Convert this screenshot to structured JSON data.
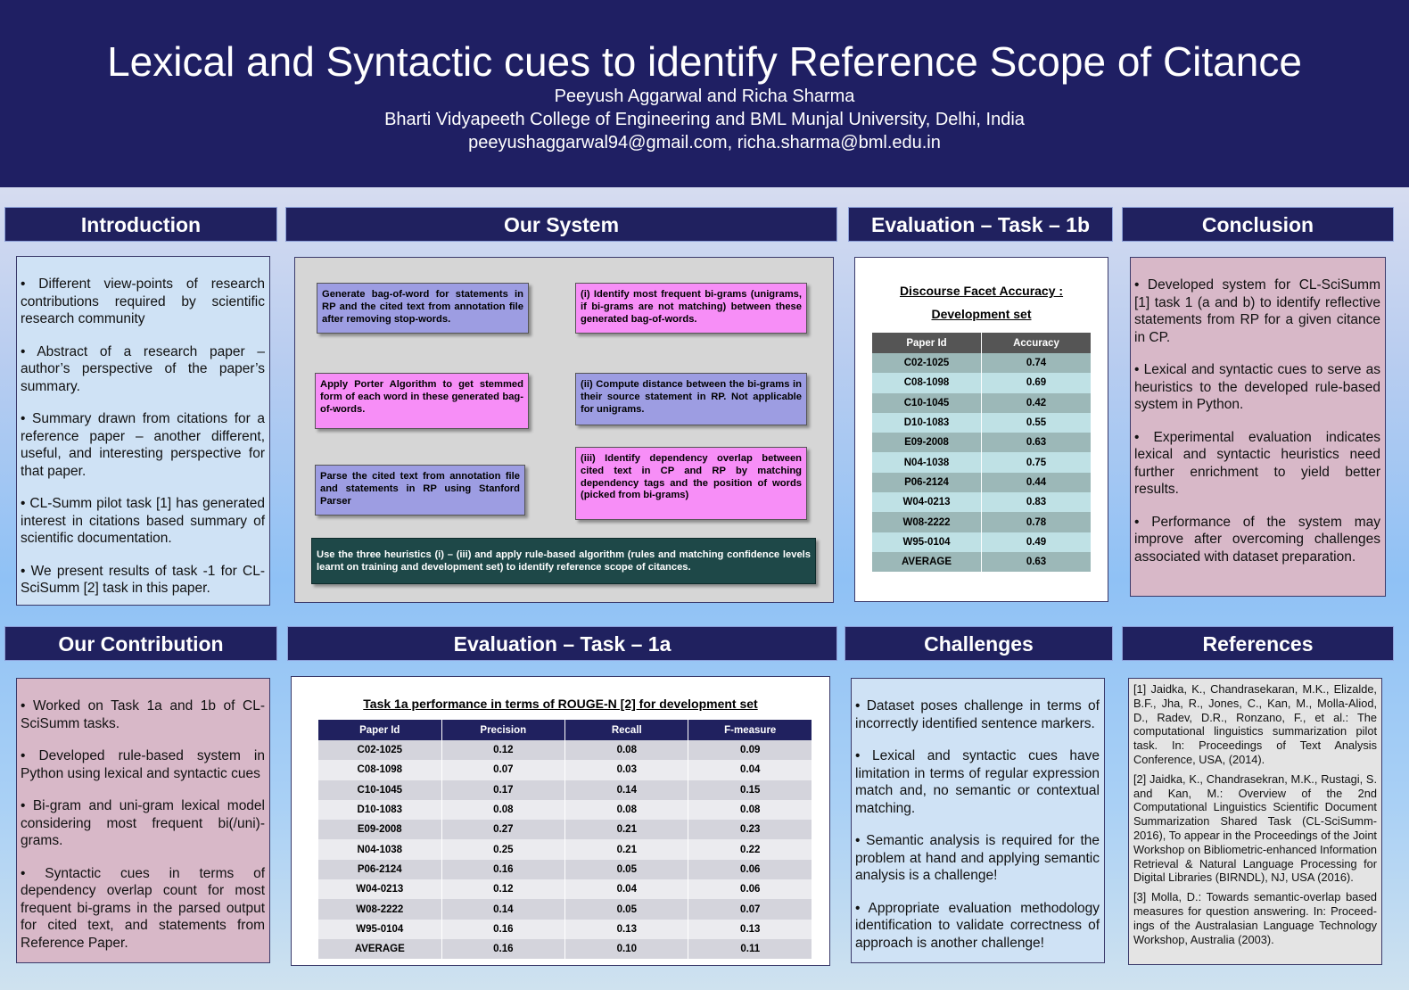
{
  "header": {
    "title": "Lexical and Syntactic cues to identify Reference Scope of Citance",
    "authors": "Peeyush Aggarwal  and Richa Sharma",
    "affiliation": "Bharti Vidyapeeth College of Engineering and  BML Munjal University, Delhi, India",
    "emails": "peeyushaggarwal94@gmail.com, richa.sharma@bml.edu.in"
  },
  "introduction": {
    "title": "Introduction",
    "bullets": [
      "• Different view-points of research contributions required by scientific research community",
      "• Abstract of a research paper – author’s perspective of the paper’s summary.",
      "• Summary drawn from citations for a reference paper – another different, useful, and interesting perspective for that paper.",
      "• CL-Summ pilot task [1] has generated interest in citations based summary of scientific documentation.",
      "• We present results of task -1 for CL-SciSumm [2] task in this paper."
    ]
  },
  "system": {
    "title": "Our System",
    "boxes": [
      "Generate bag-of-word for statements in RP and the cited text from annotation file after removing stop-words.",
      "(i) Identify most frequent bi-grams (unigrams, if bi-grams are not matching) between these generated bag-of-words.",
      "Apply Porter Algorithm to get stemmed form of each word in these generated bag-of-words.",
      "(ii) Compute distance between the bi-grams in their source statement in RP. Not applicable for unigrams.",
      "Parse the cited text from annotation file and statements in RP using Stanford Parser",
      "(iii) Identify dependency overlap between cited text in CP and RP by matching dependency tags and the position of words (picked from bi-grams)"
    ],
    "note": "Use the three heuristics (i) – (iii) and apply rule-based algorithm (rules and matching confidence levels learnt on training and development set) to identify reference scope of citances."
  },
  "evaluation_1b": {
    "title": "Evaluation – Task – 1b",
    "caption": [
      "Discourse Facet Accuracy :",
      "Development set"
    ],
    "table": {
      "columns": [
        "Paper Id",
        "Accuracy"
      ],
      "rows": [
        [
          "C02-1025",
          "0.74"
        ],
        [
          "C08-1098",
          "0.69"
        ],
        [
          "C10-1045",
          "0.42"
        ],
        [
          "D10-1083",
          "0.55"
        ],
        [
          "E09-2008",
          "0.63"
        ],
        [
          "N04-1038",
          "0.75"
        ],
        [
          "P06-2124",
          "0.44"
        ],
        [
          "W04-0213",
          "0.83"
        ],
        [
          "W08-2222",
          "0.78"
        ],
        [
          "W95-0104",
          "0.49"
        ],
        [
          "AVERAGE",
          "0.63"
        ]
      ]
    }
  },
  "conclusion": {
    "title": "Conclusion",
    "bullets": [
      "• Developed system for CL-SciSumm [1] task 1 (a and b) to identify reflective statements from RP for a given citance in CP.",
      "• Lexical and syntactic cues to serve as heuristics to the developed rule-based system in Python.",
      "• Experimental evaluation indicates lexical and syntactic heuristics need further enrichment to yield better results.",
      "• Performance of the system may improve after overcoming challenges associated with dataset preparation."
    ]
  },
  "contribution": {
    "title": "Our Contribution",
    "bullets": [
      "• Worked on Task 1a and 1b of CL-SciSumm tasks.",
      "• Developed rule-based system in Python using lexical and syntactic cues",
      "• Bi-gram and uni-gram lexical model considering most frequent bi(/uni)-grams.",
      "• Syntactic cues in terms of dependency overlap count for most frequent bi-grams in the parsed output for cited text, and statements from Reference Paper."
    ]
  },
  "evaluation_1a": {
    "title": "Evaluation – Task – 1a",
    "caption": "Task 1a performance in terms of ROUGE-N [2] for development set",
    "table": {
      "columns": [
        "Paper Id",
        "Precision",
        "Recall",
        "F-measure"
      ],
      "rows": [
        [
          "C02-1025",
          "0.12",
          "0.08",
          "0.09"
        ],
        [
          "C08-1098",
          "0.07",
          "0.03",
          "0.04"
        ],
        [
          "C10-1045",
          "0.17",
          "0.14",
          "0.15"
        ],
        [
          "D10-1083",
          "0.08",
          "0.08",
          "0.08"
        ],
        [
          "E09-2008",
          "0.27",
          "0.21",
          "0.23"
        ],
        [
          "N04-1038",
          "0.25",
          "0.21",
          "0.22"
        ],
        [
          "P06-2124",
          "0.16",
          "0.05",
          "0.06"
        ],
        [
          "W04-0213",
          "0.12",
          "0.04",
          "0.06"
        ],
        [
          "W08-2222",
          "0.14",
          "0.05",
          "0.07"
        ],
        [
          "W95-0104",
          "0.16",
          "0.13",
          "0.13"
        ],
        [
          "AVERAGE",
          "0.16",
          "0.10",
          "0.11"
        ]
      ]
    }
  },
  "challenges": {
    "title": "Challenges",
    "bullets": [
      "• Dataset poses challenge in terms of incorrectly identified sentence markers.",
      "• Lexical and syntactic cues have limitation in terms of regular expression match and, no semantic or contextual matching.",
      "• Semantic analysis is required for the problem at hand and applying semantic analysis is a challenge!",
      "• Appropriate evaluation methodology identification to validate correctness of approach is another challenge!"
    ]
  },
  "references": {
    "title": "References",
    "items": [
      "[1] Jaidka, K., Chandrasekaran, M.K., Elizalde, B.F., Jha, R., Jones, C., Kan, M., Molla-Aliod, D., Radev, D.R., Ronzano, F., et al.: The computational linguistics summarization pilot task. In: Proceedings of Text Analysis Conference, USA, (2014).",
      "[2] Jaidka, K., Chandrasekran, M.K., Rustagi, S. and Kan, M.: Overview of the 2nd Computational Linguistics Scientific Document Summarization Shared Task (CL-SciSumm-2016), To appear in the Proceedings of the Joint Workshop on Bibliometric-enhanced Information Retrieval & Natural Language Processing for Digital Libraries (BIRNDL), NJ, USA (2016).",
      "[3] Molla, D.: Towards semantic-overlap based measures for question answering. In: Proceed-ings of the Australasian Language Technology Workshop, Australia (2003)."
    ]
  }
}
